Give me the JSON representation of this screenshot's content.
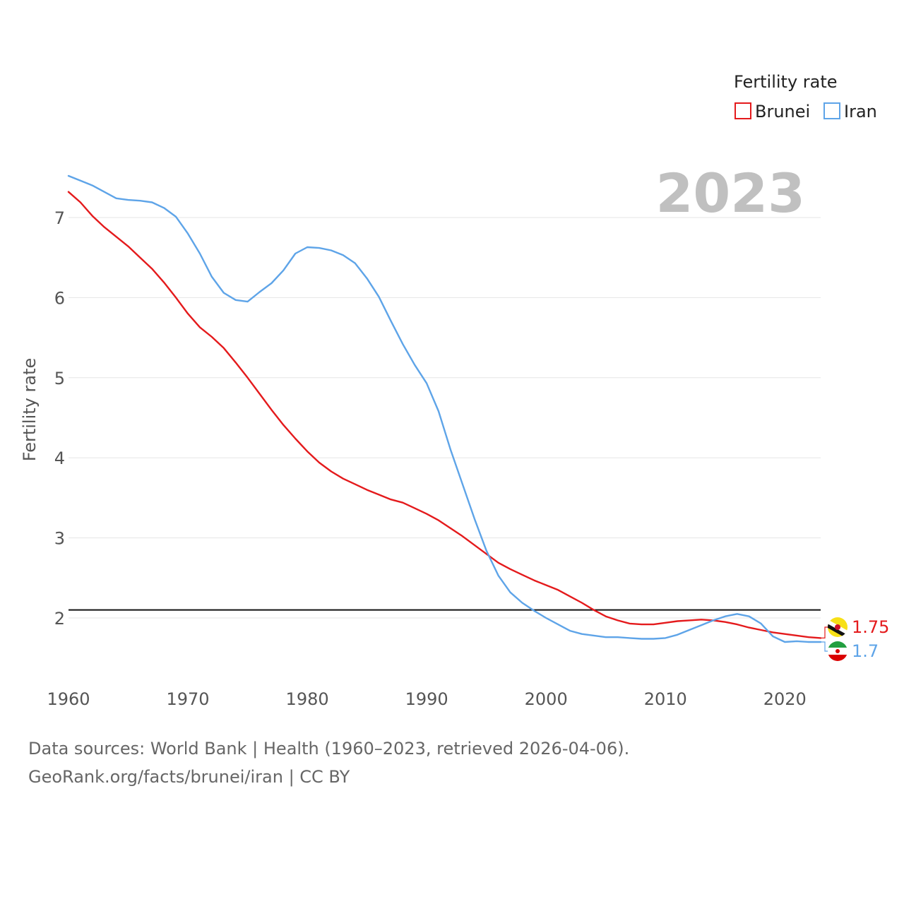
{
  "colors": {
    "brunei": "#e41a1c",
    "iran": "#5ea4e8",
    "axis_text": "#555555",
    "grid": "#e6e6e6",
    "reference_line": "#111111",
    "year_label": "#c0c0c0"
  },
  "footer": {
    "source_line": "Data sources: World Bank | Health (1960–2023, retrieved 2026-04-06).",
    "credit_line": "GeoRank.org/facts/brunei/iran | CC BY"
  },
  "chart_data": {
    "type": "line",
    "title": "",
    "year_label": "2023",
    "xlabel": "",
    "ylabel": "Fertility rate",
    "xlim": [
      1960,
      2023
    ],
    "ylim": [
      1.45,
      7.6
    ],
    "x_ticks": [
      1960,
      1970,
      1980,
      1990,
      2000,
      2010,
      2020
    ],
    "y_ticks": [
      2,
      3,
      4,
      5,
      6,
      7
    ],
    "grid": true,
    "legend": {
      "title": "Fertility rate",
      "position": "top-right",
      "entries": [
        "Brunei",
        "Iran"
      ]
    },
    "reference_line": {
      "y": 2.1
    },
    "x": [
      1960,
      1961,
      1962,
      1963,
      1964,
      1965,
      1966,
      1967,
      1968,
      1969,
      1970,
      1971,
      1972,
      1973,
      1974,
      1975,
      1976,
      1977,
      1978,
      1979,
      1980,
      1981,
      1982,
      1983,
      1984,
      1985,
      1986,
      1987,
      1988,
      1989,
      1990,
      1991,
      1992,
      1993,
      1994,
      1995,
      1996,
      1997,
      1998,
      1999,
      2000,
      2001,
      2002,
      2003,
      2004,
      2005,
      2006,
      2007,
      2008,
      2009,
      2010,
      2011,
      2012,
      2013,
      2014,
      2015,
      2016,
      2017,
      2018,
      2019,
      2020,
      2021,
      2022,
      2023
    ],
    "series": [
      {
        "name": "Brunei",
        "color": "#e41a1c",
        "end_label": "1.75",
        "values": [
          7.32,
          7.19,
          7.02,
          6.88,
          6.76,
          6.64,
          6.5,
          6.36,
          6.19,
          6.0,
          5.8,
          5.63,
          5.51,
          5.37,
          5.19,
          5.0,
          4.8,
          4.6,
          4.41,
          4.24,
          4.08,
          3.94,
          3.83,
          3.74,
          3.67,
          3.6,
          3.54,
          3.48,
          3.44,
          3.37,
          3.3,
          3.22,
          3.12,
          3.02,
          2.91,
          2.8,
          2.69,
          2.61,
          2.54,
          2.47,
          2.41,
          2.35,
          2.27,
          2.19,
          2.1,
          2.02,
          1.97,
          1.93,
          1.92,
          1.92,
          1.94,
          1.96,
          1.97,
          1.98,
          1.97,
          1.95,
          1.92,
          1.88,
          1.85,
          1.82,
          1.8,
          1.78,
          1.76,
          1.75
        ]
      },
      {
        "name": "Iran",
        "color": "#5ea4e8",
        "end_label": "1.7",
        "values": [
          7.52,
          7.46,
          7.4,
          7.32,
          7.24,
          7.22,
          7.21,
          7.19,
          7.12,
          7.01,
          6.8,
          6.55,
          6.26,
          6.06,
          5.97,
          5.95,
          6.07,
          6.18,
          6.34,
          6.55,
          6.63,
          6.62,
          6.59,
          6.53,
          6.43,
          6.24,
          6.01,
          5.71,
          5.42,
          5.16,
          4.93,
          4.58,
          4.1,
          3.67,
          3.24,
          2.84,
          2.53,
          2.32,
          2.19,
          2.09,
          2.0,
          1.92,
          1.84,
          1.8,
          1.78,
          1.76,
          1.76,
          1.75,
          1.74,
          1.74,
          1.75,
          1.79,
          1.85,
          1.91,
          1.97,
          2.02,
          2.05,
          2.02,
          1.93,
          1.77,
          1.7,
          1.71,
          1.7,
          1.7
        ]
      }
    ]
  }
}
